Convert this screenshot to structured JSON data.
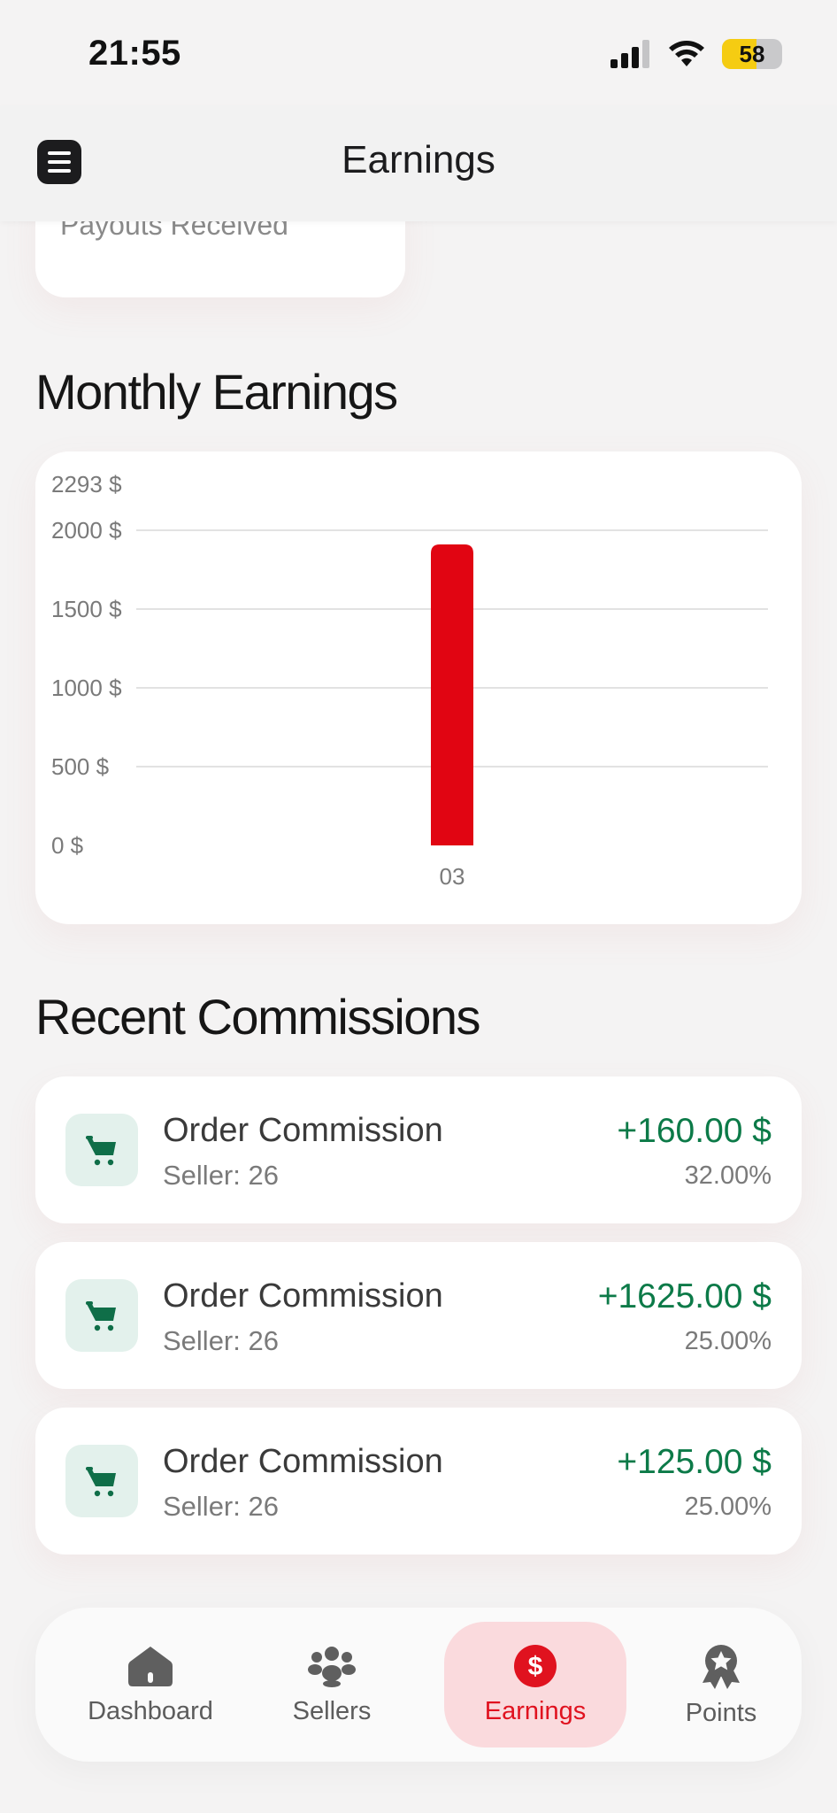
{
  "status_bar": {
    "time": "21:55",
    "battery": "58",
    "battery_level": 0.58
  },
  "header": {
    "title": "Earnings",
    "menu_icon": "hamburger-menu-icon"
  },
  "payouts_card": {
    "label": "Payouts Received"
  },
  "monthly_section": {
    "title": "Monthly Earnings"
  },
  "chart_data": {
    "type": "bar",
    "categories": [
      "03"
    ],
    "values": [
      1910
    ],
    "y_max_label": "2293 $",
    "yticks": [
      0,
      500,
      1000,
      1500,
      2000
    ],
    "ytick_labels": [
      "0 $",
      "500 $",
      "1000 $",
      "1500 $",
      "2000 $"
    ],
    "ylim": [
      0,
      2000
    ],
    "bar_color": "#e10512",
    "grid": true
  },
  "commissions_section": {
    "title": "Recent Commissions"
  },
  "commissions": [
    {
      "title": "Order Commission",
      "seller": "Seller: 26",
      "amount": "+160.00 $",
      "percent": "32.00%"
    },
    {
      "title": "Order Commission",
      "seller": "Seller: 26",
      "amount": "+1625.00 $",
      "percent": "25.00%"
    },
    {
      "title": "Order Commission",
      "seller": "Seller: 26",
      "amount": "+125.00 $",
      "percent": "25.00%"
    }
  ],
  "nav": {
    "items": [
      {
        "label": "Dashboard",
        "icon": "home-icon"
      },
      {
        "label": "Sellers",
        "icon": "users-group-icon"
      },
      {
        "label": "Earnings",
        "icon": "dollar-icon",
        "active": true
      },
      {
        "label": "Points",
        "icon": "award-badge-icon"
      }
    ]
  },
  "colors": {
    "accent": "#e0121f",
    "positive": "#0c7a48",
    "icon_green": "#0f6e48"
  }
}
